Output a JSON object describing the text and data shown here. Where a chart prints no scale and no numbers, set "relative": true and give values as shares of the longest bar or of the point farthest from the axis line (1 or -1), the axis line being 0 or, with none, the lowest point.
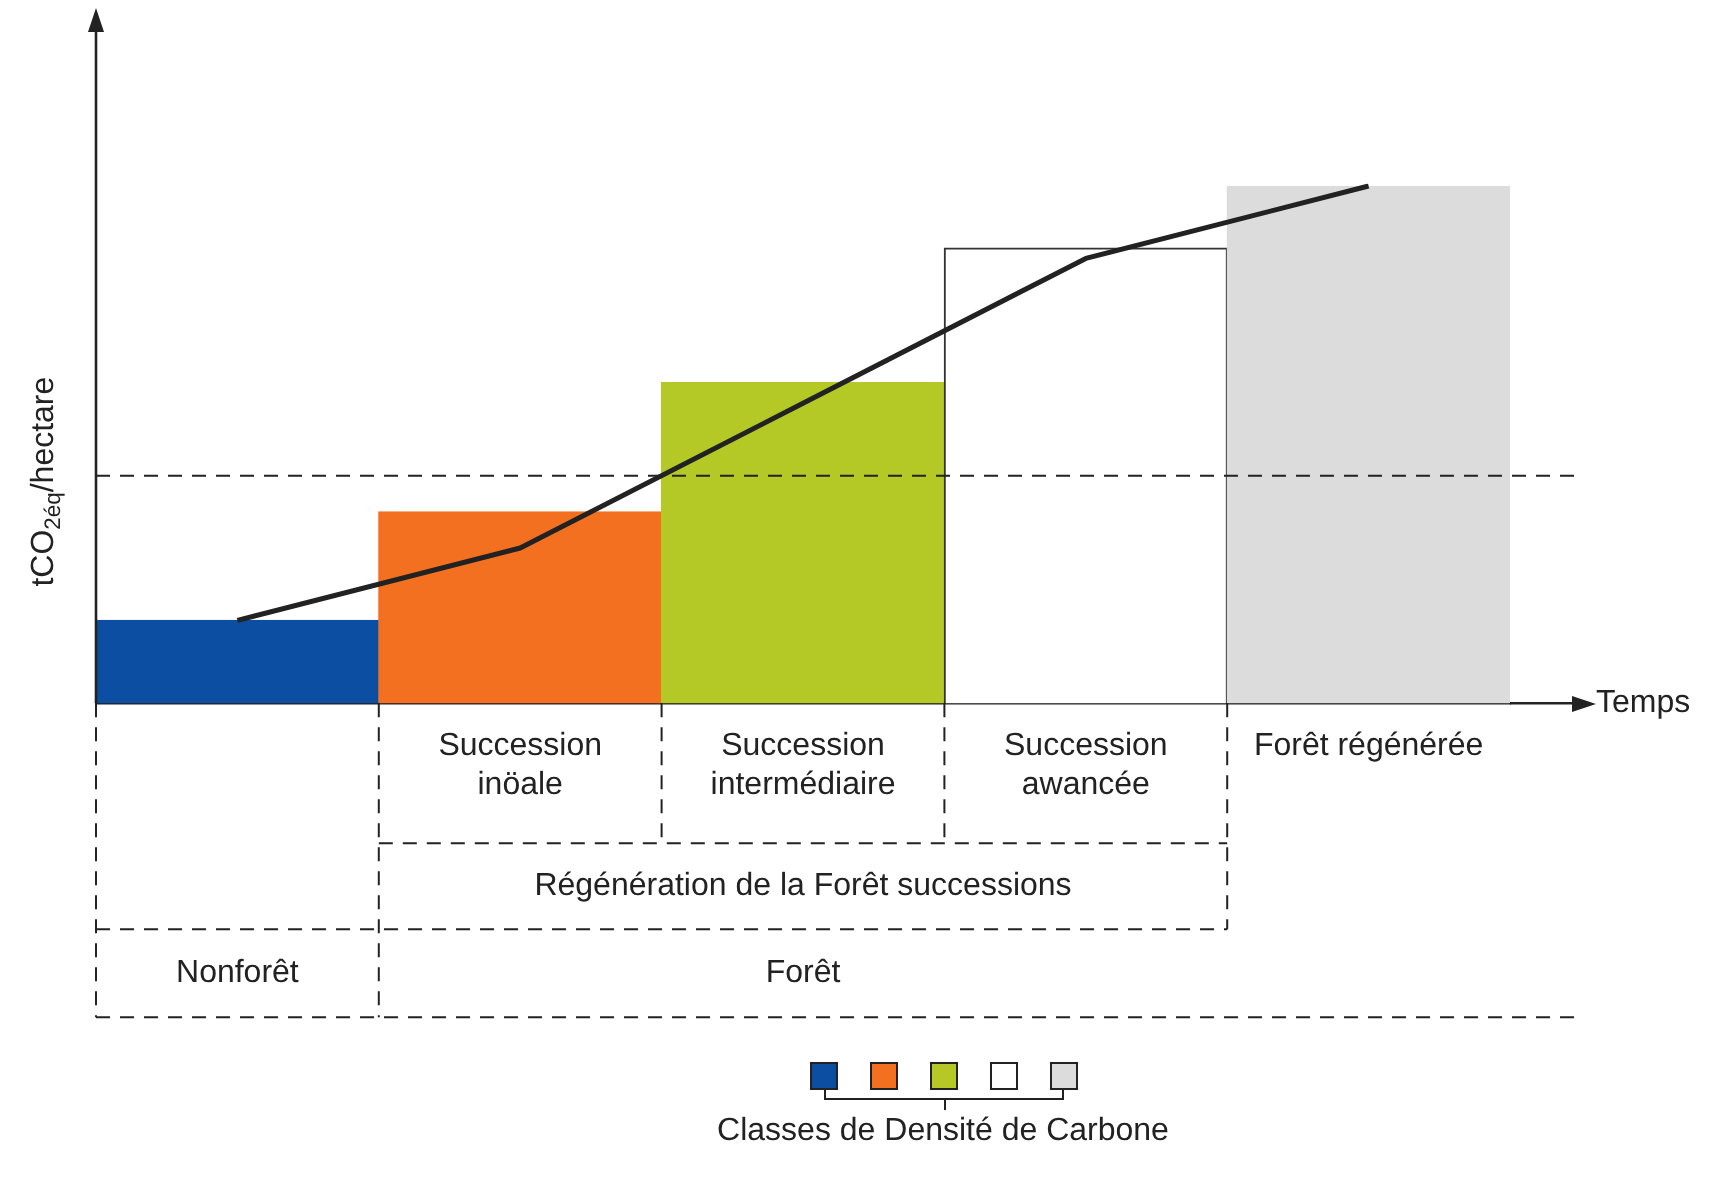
{
  "chart_data": {
    "type": "bar",
    "relative": true,
    "xlabel": "Temps",
    "ylabel": "tCO$_{2éq}$/hectare",
    "legend_title": "Classes de Densité de Carbone",
    "marker": "none",
    "grid": false,
    "categories": [
      null,
      "Succession inöale",
      "Succession intermédiaire",
      "Succession awancée",
      "Forêt régénérée"
    ],
    "series": [
      {
        "colors": [
          "#0b4ea2",
          "#f37021",
          "#b5c926",
          "#ffffff",
          "#dcdcdc"
        ],
        "values": [
          0.16,
          0.37,
          0.62,
          0.88,
          1
        ]
      },
      {
        "type": "line",
        "color": "#222222",
        "values": [
          0.16,
          0.3,
          0.58,
          0.86,
          1
        ]
      }
    ],
    "ref_lines": [
      {
        "axis": "y",
        "value": 0.44,
        "line_style": "dashed",
        "color": "#222222"
      }
    ],
    "annotations": [
      "Régénération de la Forêt successions",
      "Nonforêt",
      "Forêt"
    ]
  }
}
